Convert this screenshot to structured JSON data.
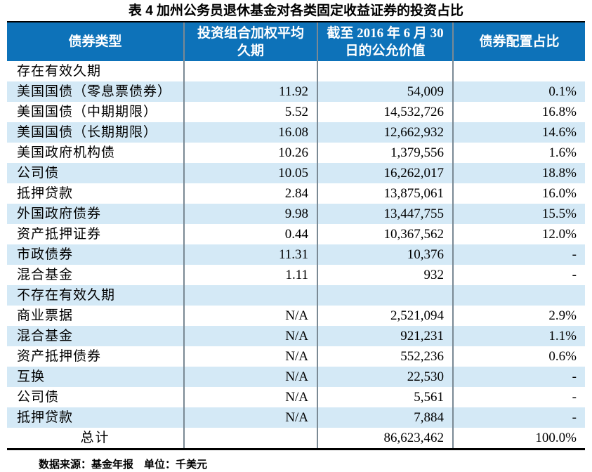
{
  "title": "表 4 加州公务员退休基金对各类固定收益证券的投资占比",
  "colors": {
    "header_bg": "#0d72b9",
    "header_text": "#ffffff",
    "stripe_bg": "#d4e9f6",
    "grid_line": "#7a8994",
    "outer_border": "#000000"
  },
  "table": {
    "headers": {
      "bond_type": "债券类型",
      "duration": "投资组合加权平均\n久期",
      "fair_value": "截至 2016 年 6 月 30\n日的公允价值",
      "allocation": "债券配置占比"
    },
    "rows": [
      {
        "label": "存在有效久期",
        "duration": "",
        "value": "",
        "share": ""
      },
      {
        "label": "美国国债（零息票债券）",
        "duration": "11.92",
        "value": "54,009",
        "share": "0.1%"
      },
      {
        "label": "美国国债（中期期限）",
        "duration": "5.52",
        "value": "14,532,726",
        "share": "16.8%"
      },
      {
        "label": "美国国债（长期期限）",
        "duration": "16.08",
        "value": "12,662,932",
        "share": "14.6%"
      },
      {
        "label": "美国政府机构债",
        "duration": "10.26",
        "value": "1,379,556",
        "share": "1.6%"
      },
      {
        "label": "公司债",
        "duration": "10.05",
        "value": "16,262,017",
        "share": "18.8%"
      },
      {
        "label": "抵押贷款",
        "duration": "2.84",
        "value": "13,875,061",
        "share": "16.0%"
      },
      {
        "label": "外国政府债券",
        "duration": "9.98",
        "value": "13,447,755",
        "share": "15.5%"
      },
      {
        "label": "资产抵押证券",
        "duration": "0.44",
        "value": "10,367,562",
        "share": "12.0%"
      },
      {
        "label": "市政债券",
        "duration": "11.31",
        "value": "10,376",
        "share": "-"
      },
      {
        "label": "混合基金",
        "duration": "1.11",
        "value": "932",
        "share": "-"
      },
      {
        "label": "不存在有效久期",
        "duration": "",
        "value": "",
        "share": ""
      },
      {
        "label": "商业票据",
        "duration": "N/A",
        "value": "2,521,094",
        "share": "2.9%"
      },
      {
        "label": "混合基金",
        "duration": "N/A",
        "value": "921,231",
        "share": "1.1%"
      },
      {
        "label": "资产抵押债券",
        "duration": "N/A",
        "value": "552,236",
        "share": "0.6%"
      },
      {
        "label": "互换",
        "duration": "N/A",
        "value": "22,530",
        "share": "-"
      },
      {
        "label": "公司债",
        "duration": "N/A",
        "value": "5,561",
        "share": "-"
      },
      {
        "label": "抵押贷款",
        "duration": "N/A",
        "value": "7,884",
        "share": "-"
      },
      {
        "label": "总计",
        "duration": "",
        "value": "86,623,462",
        "share": "100.0%"
      }
    ]
  },
  "footer": "数据来源：基金年报　单位：千美元"
}
